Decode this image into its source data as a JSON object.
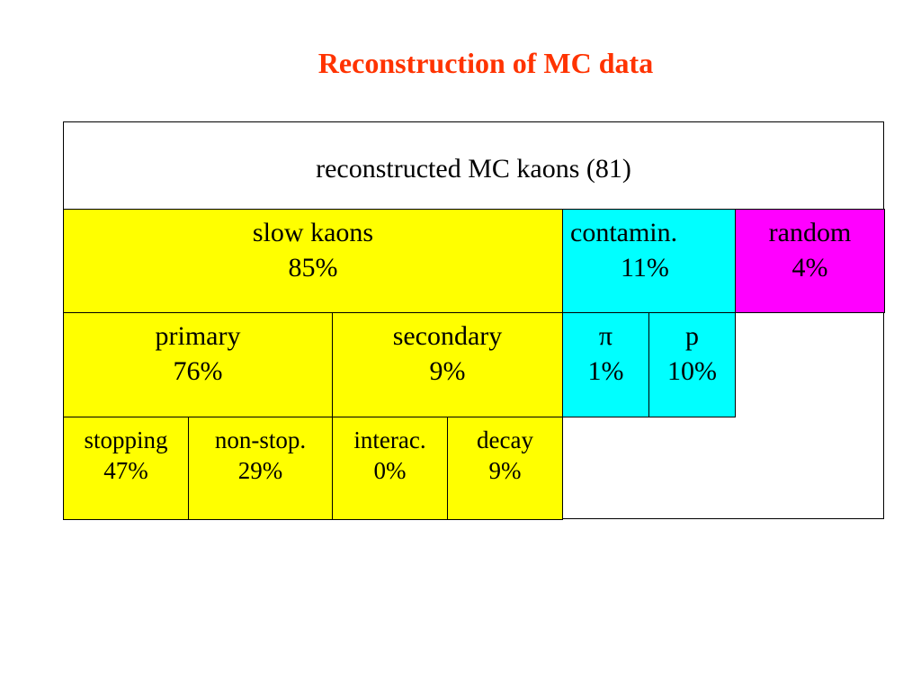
{
  "title": "Reconstruction of MC data",
  "header": "reconstructed MC kaons  (81)",
  "row1": {
    "slow": {
      "label": "slow kaons",
      "value": "85%"
    },
    "contamin": {
      "label": "contamin.",
      "value": "11%"
    },
    "random": {
      "label": "random",
      "value": "4%"
    }
  },
  "row2": {
    "primary": {
      "label": "primary",
      "value": "76%"
    },
    "secondary": {
      "label": "secondary",
      "value": "9%"
    },
    "pi": {
      "label": "π",
      "value": "1%"
    },
    "p": {
      "label": "p",
      "value": "10%"
    }
  },
  "row3": {
    "stopping": {
      "label": "stopping",
      "value": "47%"
    },
    "nonstop": {
      "label": "non-stop.",
      "value": "29%"
    },
    "interac": {
      "label": "interac.",
      "value": "0%"
    },
    "decay": {
      "label": "decay",
      "value": "9%"
    }
  },
  "colors": {
    "title": "#ff3300",
    "yellow": "#ffff00",
    "cyan": "#00ffff",
    "magenta": "#ff00ff"
  }
}
